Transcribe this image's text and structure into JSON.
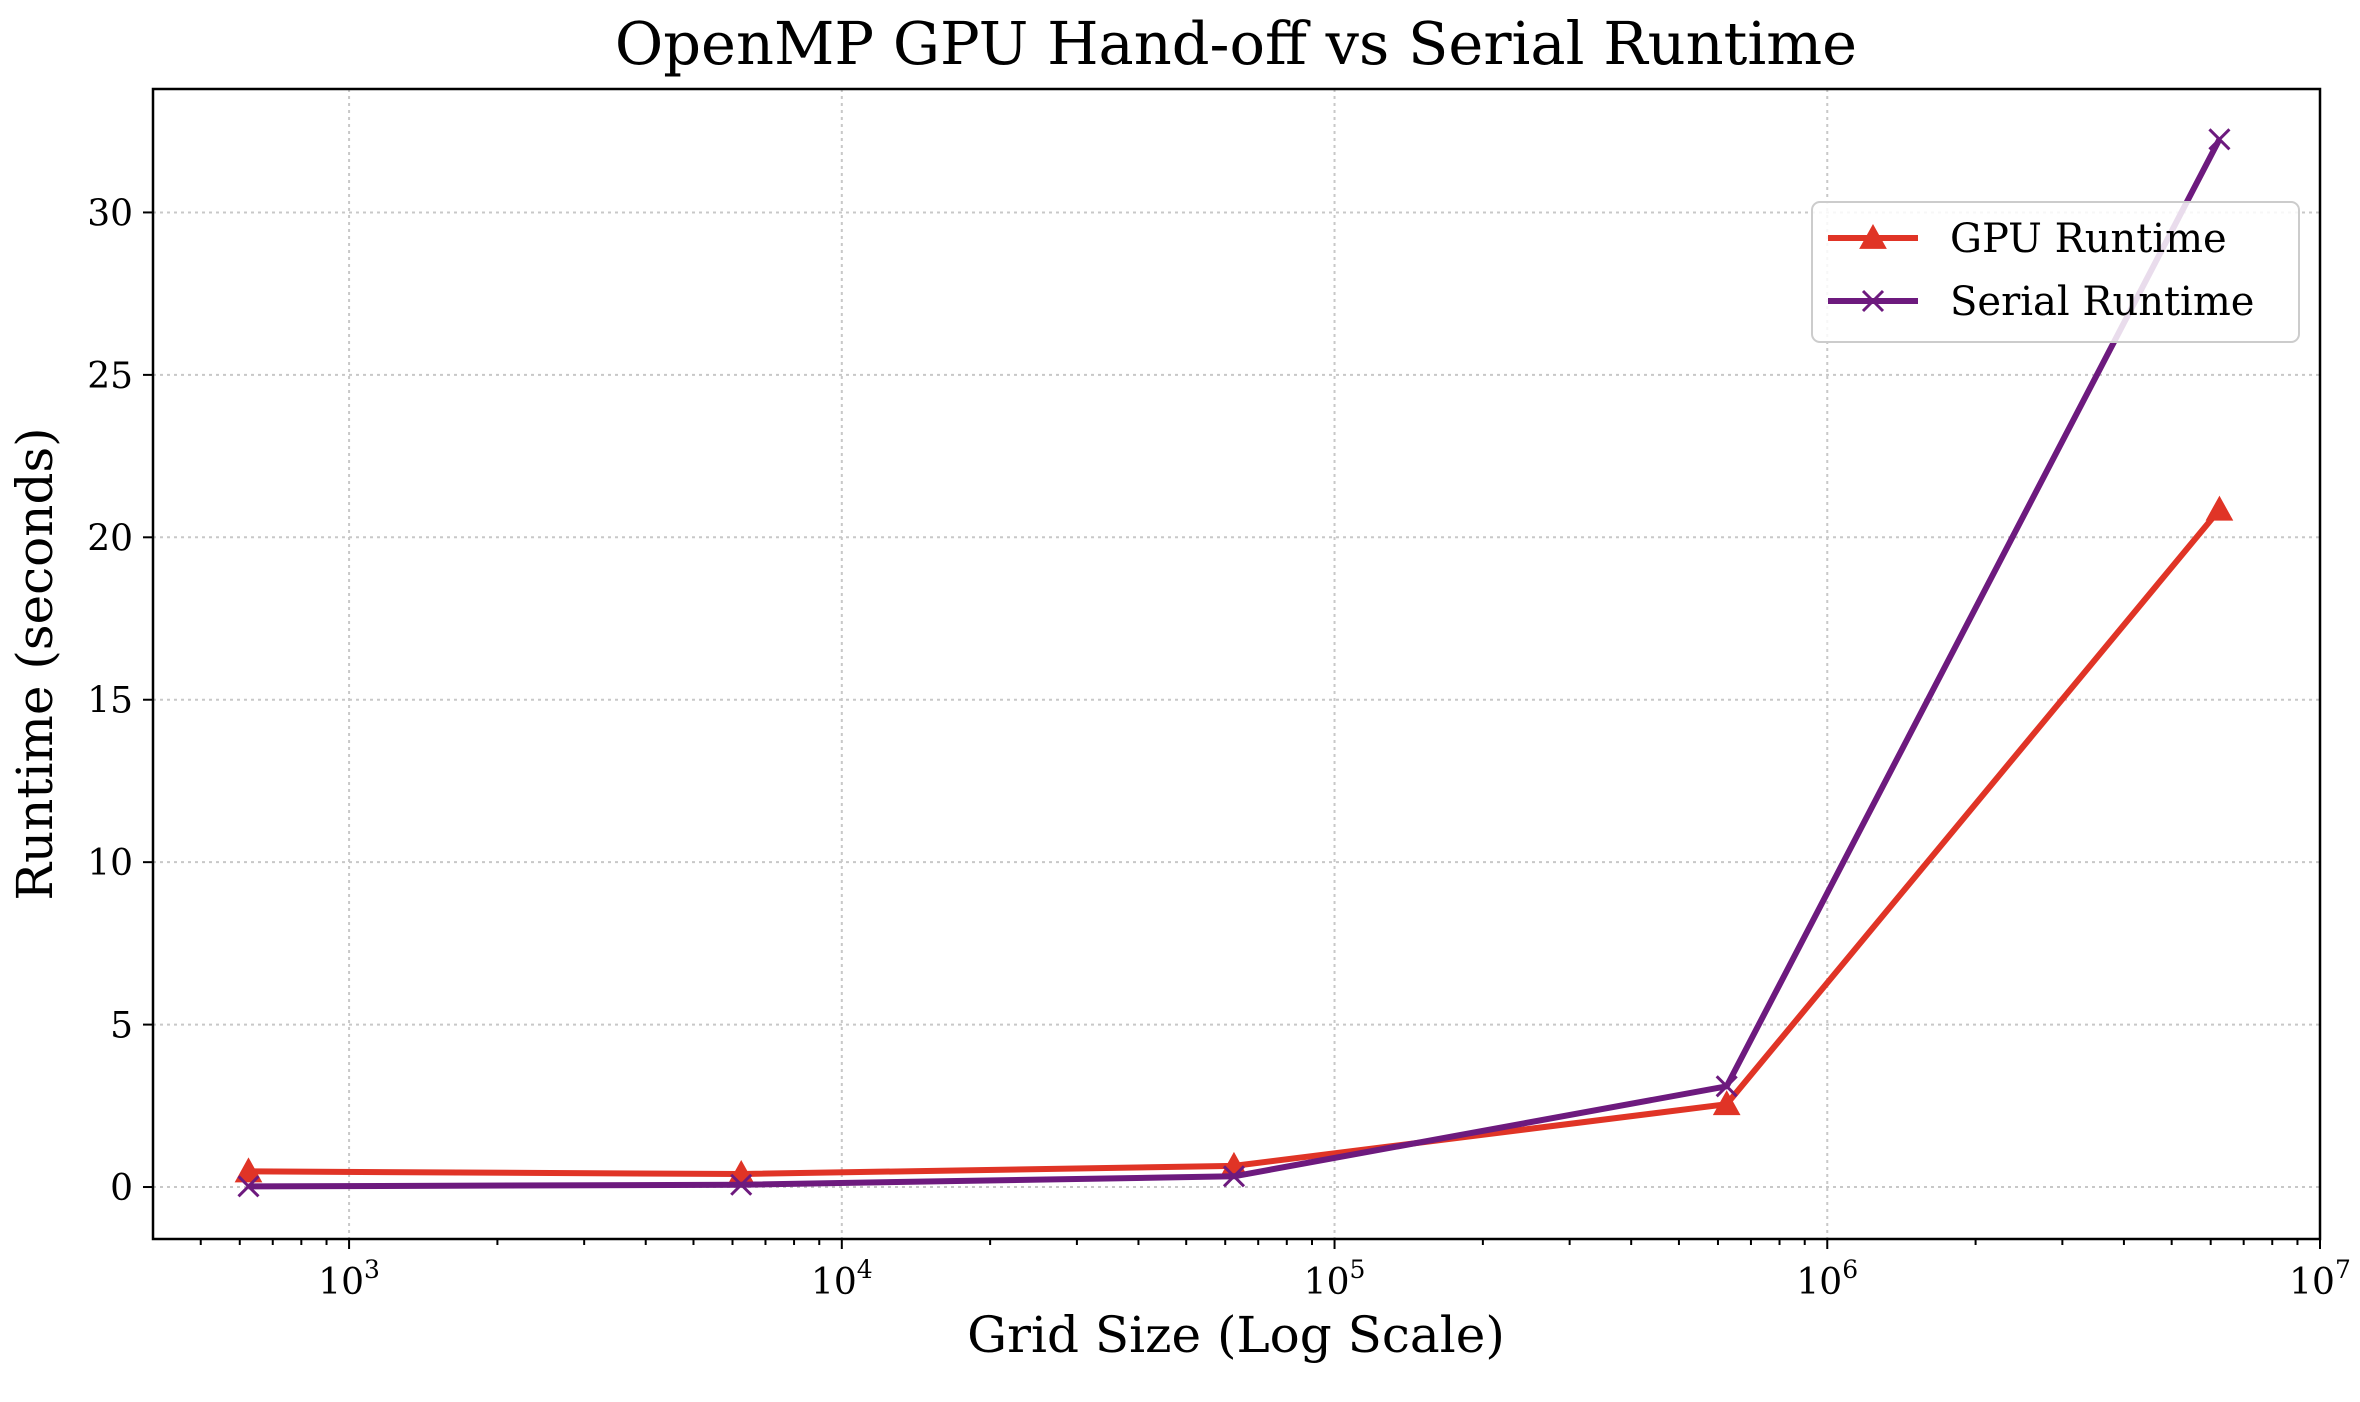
{
  "chart_data": {
    "type": "line",
    "title": "OpenMP GPU Hand-off vs Serial Runtime",
    "xlabel": "Grid Size (Log Scale)",
    "ylabel": "Runtime (seconds)",
    "xscale": "log",
    "xlim": [
      400,
      10000000
    ],
    "ylim": [
      -1.6,
      33.8
    ],
    "grid": true,
    "legend_position": "upper right",
    "x_ticks": [
      {
        "value": 1000,
        "label": "10^3"
      },
      {
        "value": 10000,
        "label": "10^4"
      },
      {
        "value": 100000,
        "label": "10^5"
      },
      {
        "value": 1000000,
        "label": "10^6"
      },
      {
        "value": 10000000,
        "label": "10^7"
      }
    ],
    "y_ticks": [
      0,
      5,
      10,
      15,
      20,
      25,
      30
    ],
    "x": [
      625,
      6250,
      62500,
      625000,
      6250000
    ],
    "series": [
      {
        "name": "GPU Runtime",
        "color": "#e03426",
        "marker": "triangle",
        "values": [
          0.48,
          0.4,
          0.65,
          2.55,
          20.85
        ]
      },
      {
        "name": "Serial Runtime",
        "color": "#6d1a7e",
        "marker": "x",
        "values": [
          0.02,
          0.07,
          0.33,
          3.1,
          32.25
        ]
      }
    ]
  }
}
